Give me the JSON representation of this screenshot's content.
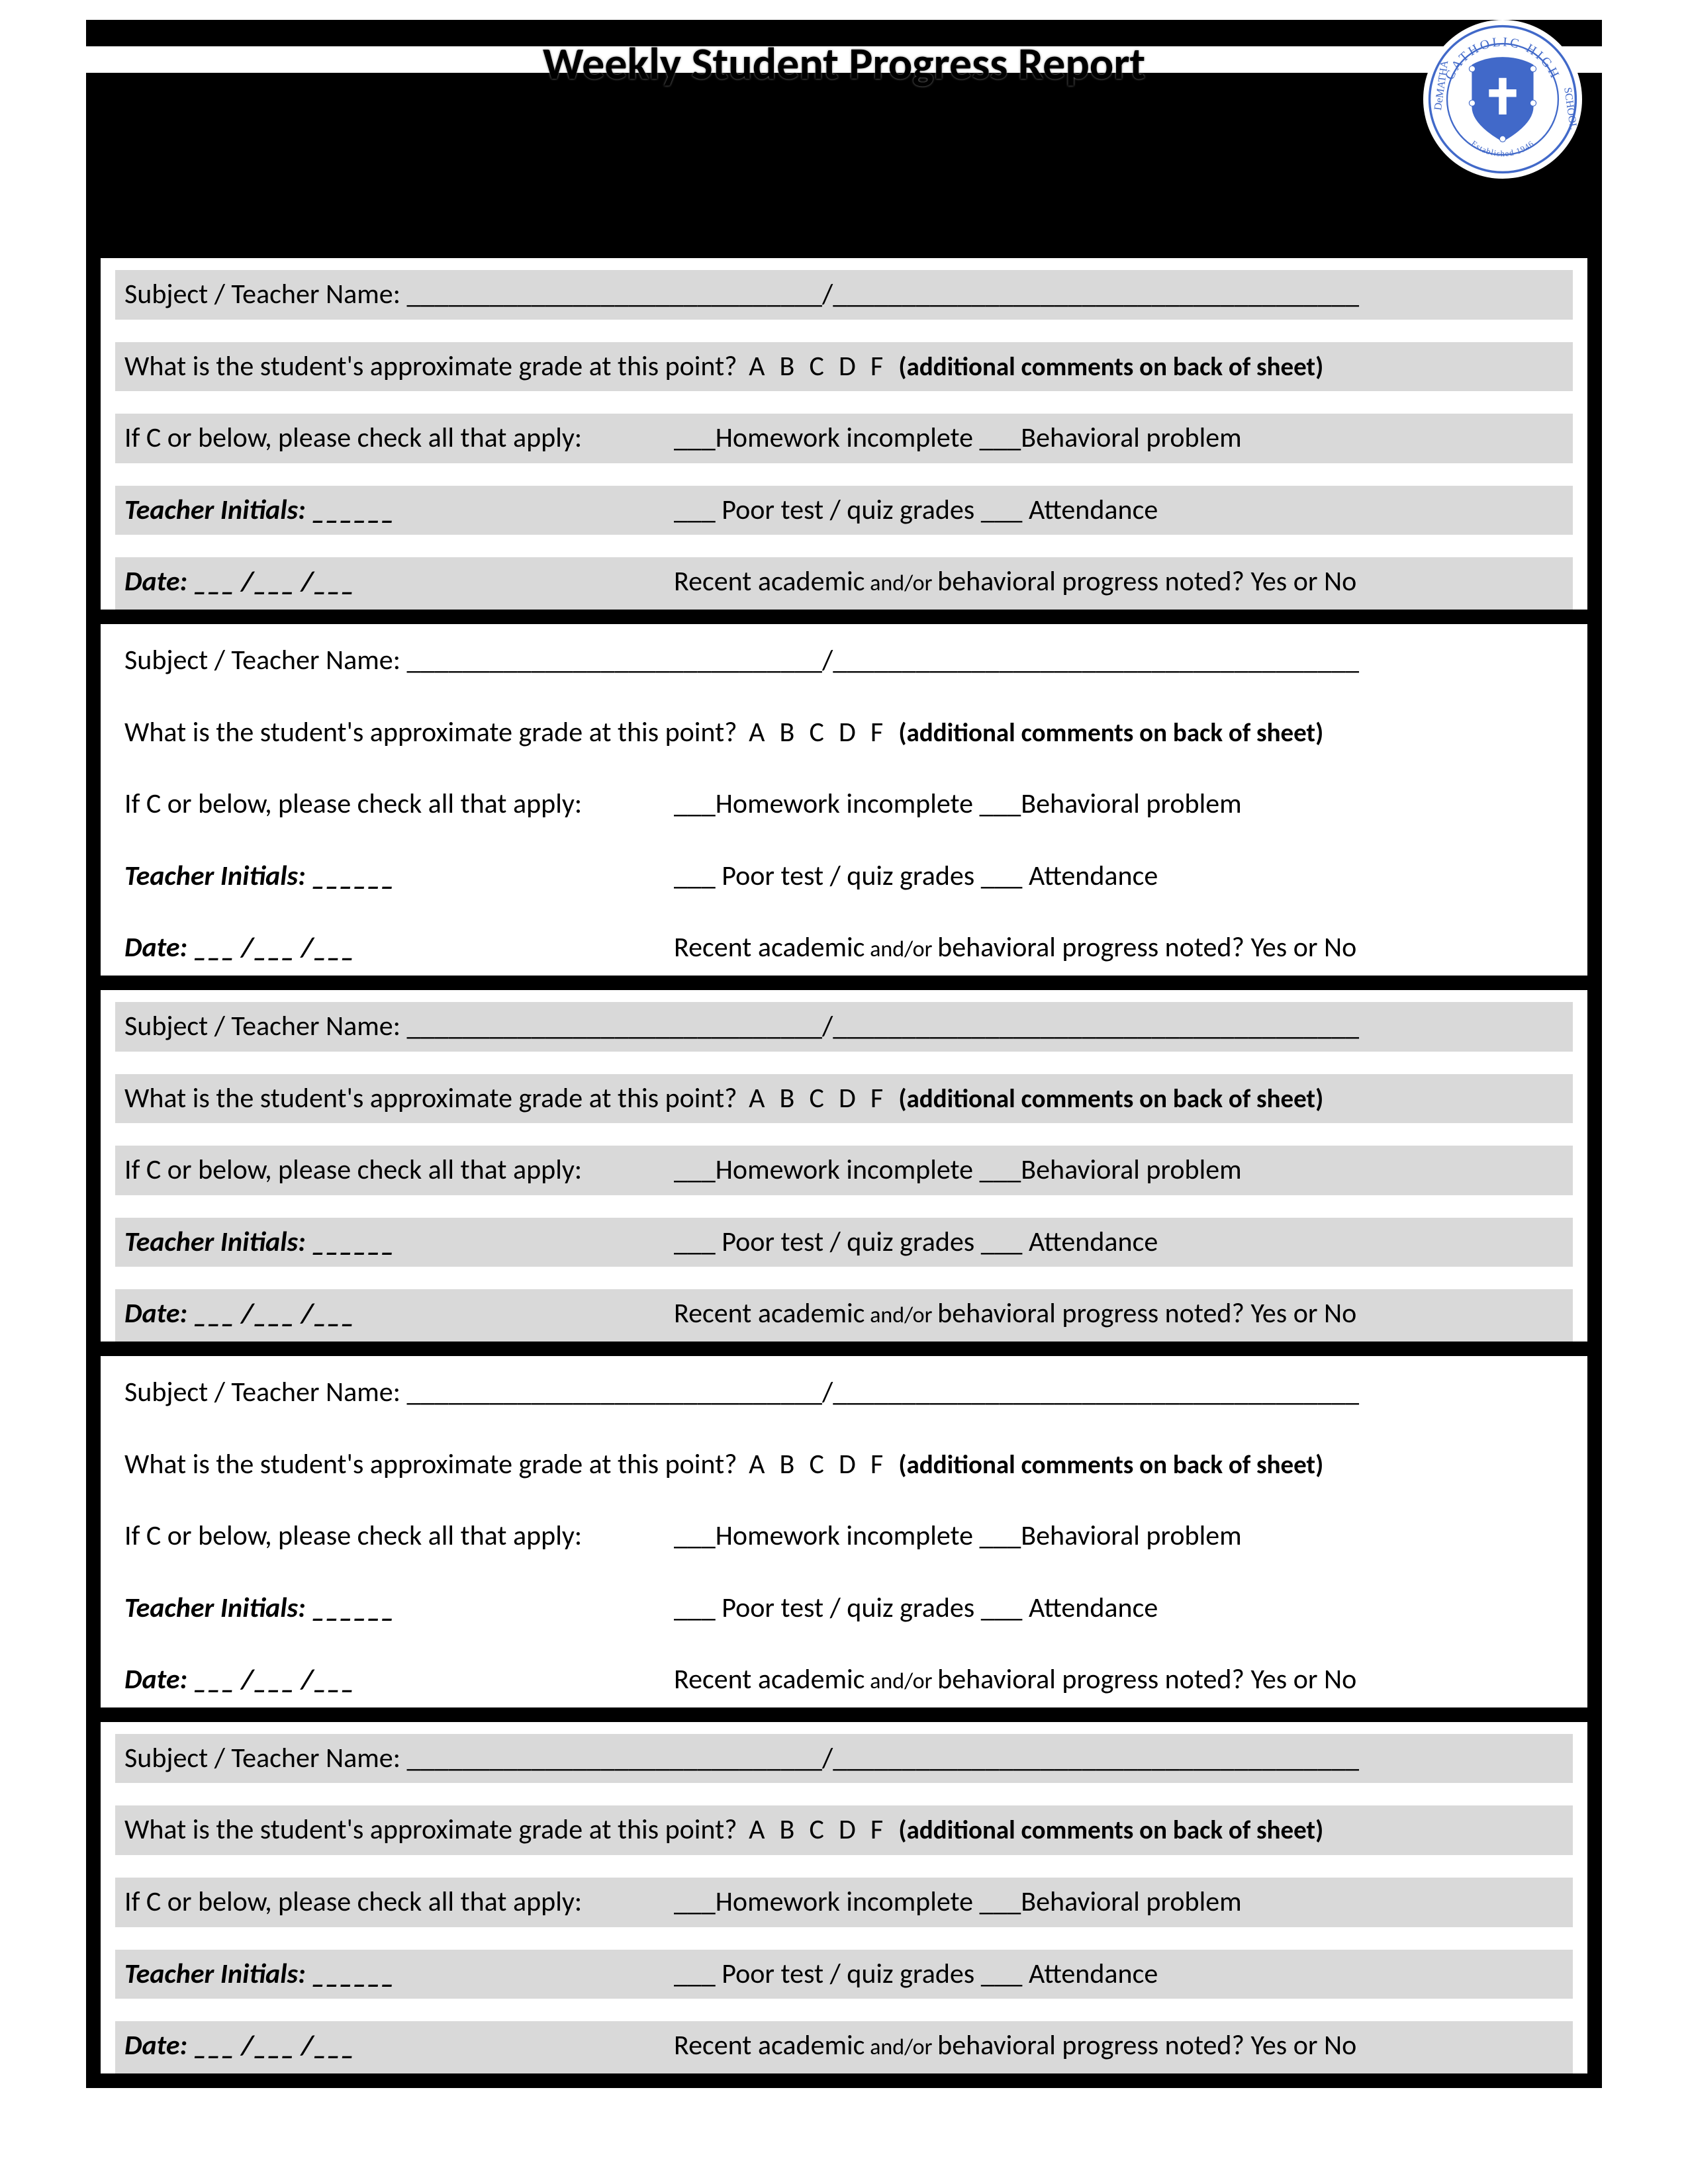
{
  "document": {
    "title": "Weekly Student Progress Report",
    "seal_text_top": "CATHOLIC HIGH",
    "seal_text_left": "DeMATHA",
    "seal_text_right": "SCHOOL",
    "seal_text_bottom": "Established 1946",
    "seal_colors": {
      "outline": "#4169c9",
      "fill": "#4169c9",
      "bg": "#ffffff"
    }
  },
  "block_style": {
    "shaded_bg": "#d9d9d9",
    "plain_bg": "#ffffff",
    "border": "#000000",
    "font_size_main": 42,
    "font_size_additional": 39,
    "font_size_andor": 34
  },
  "labels": {
    "subject_teacher": "Subject / Teacher Name:",
    "subject_line1": "______________________________",
    "subject_slash": "/",
    "subject_line2": "______________________________________",
    "grade_q": "What is the student's approximate grade at this point?",
    "grades": "A   B   C   D   F",
    "additional": "(additional comments on back of sheet)",
    "c_or_below": "If C or below, please check all that apply:",
    "hw_incomplete": "___Homework incomplete",
    "behavioral": "___Behavioral problem",
    "teacher_initials": "Teacher Initials:  ______",
    "poor_test": "___ Poor test / quiz grades",
    "attendance": "___ Attendance",
    "date": "Date:   ___ /___ /___",
    "recent1": "Recent academic",
    "andor": " and/or ",
    "recent2": "behavioral progress noted?",
    "yesno": "Yes   or   No"
  },
  "blocks": [
    {
      "shaded": true
    },
    {
      "shaded": false
    },
    {
      "shaded": true
    },
    {
      "shaded": false
    },
    {
      "shaded": true
    }
  ]
}
